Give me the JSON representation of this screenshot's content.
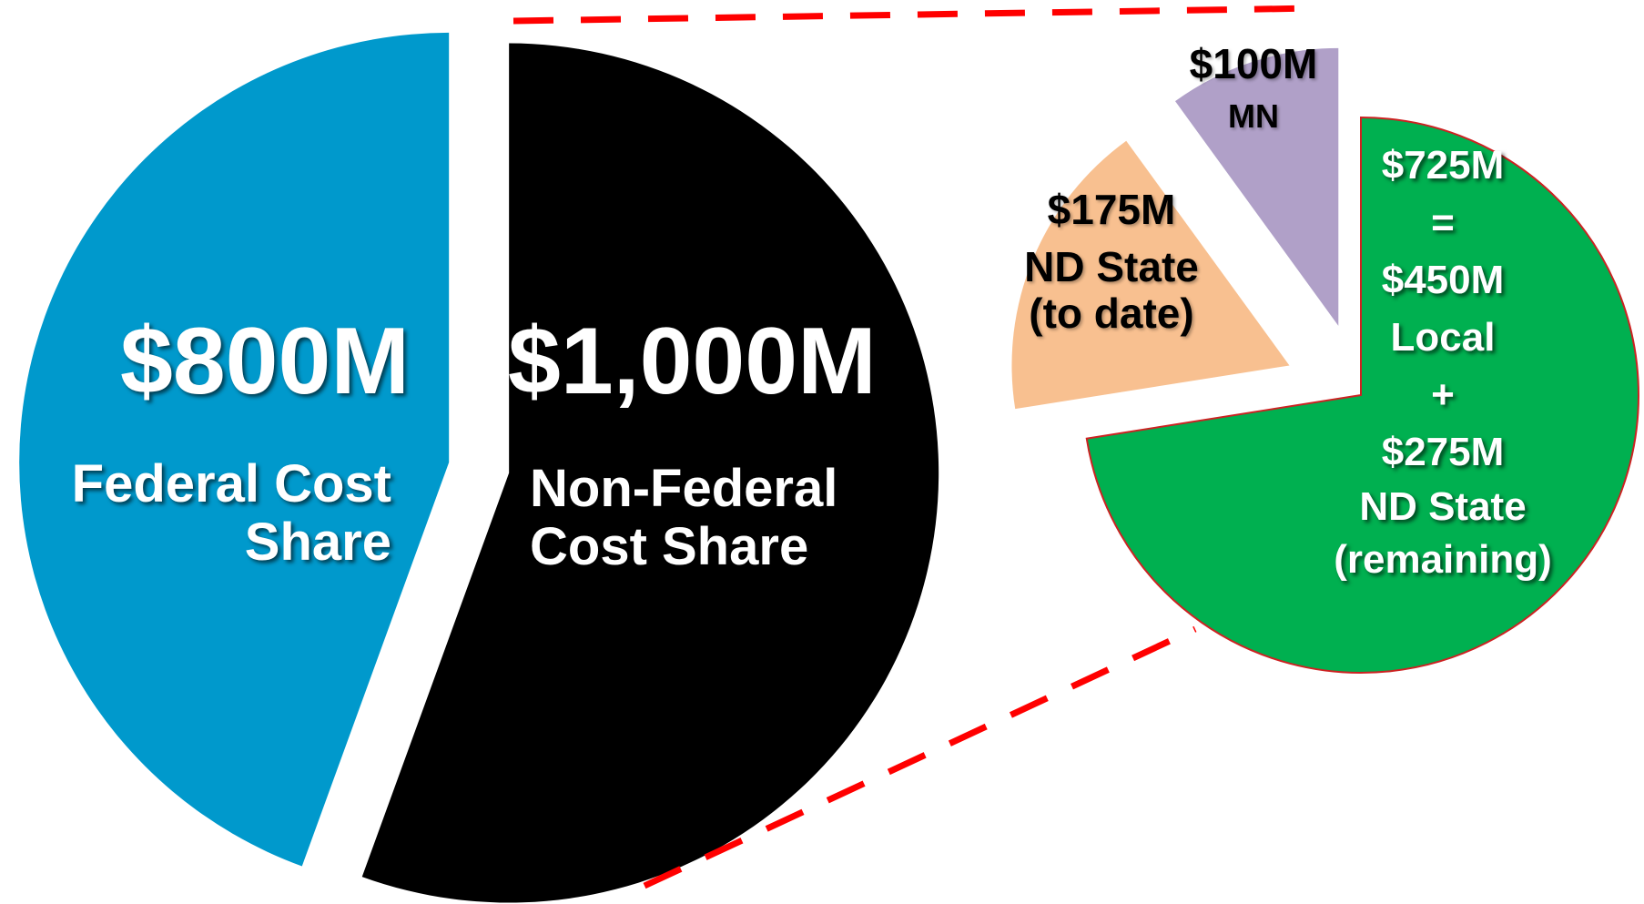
{
  "chart_data": [
    {
      "type": "pie",
      "categories": [
        "Federal Cost Share",
        "Non-Federal Cost Share"
      ],
      "values": [
        800,
        1000
      ],
      "value_labels": [
        "$800M",
        "$1,000M"
      ],
      "colors": [
        "#0099cc",
        "#000000"
      ]
    },
    {
      "type": "pie",
      "categories": [
        null,
        "ND State (to date)",
        "MN"
      ],
      "values": [
        725,
        175,
        100
      ],
      "value_labels": [
        "$725M",
        "$175M",
        "$100M"
      ],
      "colors": [
        "#00b050",
        "#f8c090",
        "#b0a0c8"
      ],
      "breakdown": {
        "operators": [
          "=",
          "+"
        ],
        "labels": [
          "$450M",
          "$275M"
        ],
        "names": [
          "Local",
          "ND State (remaining)"
        ]
      }
    }
  ]
}
